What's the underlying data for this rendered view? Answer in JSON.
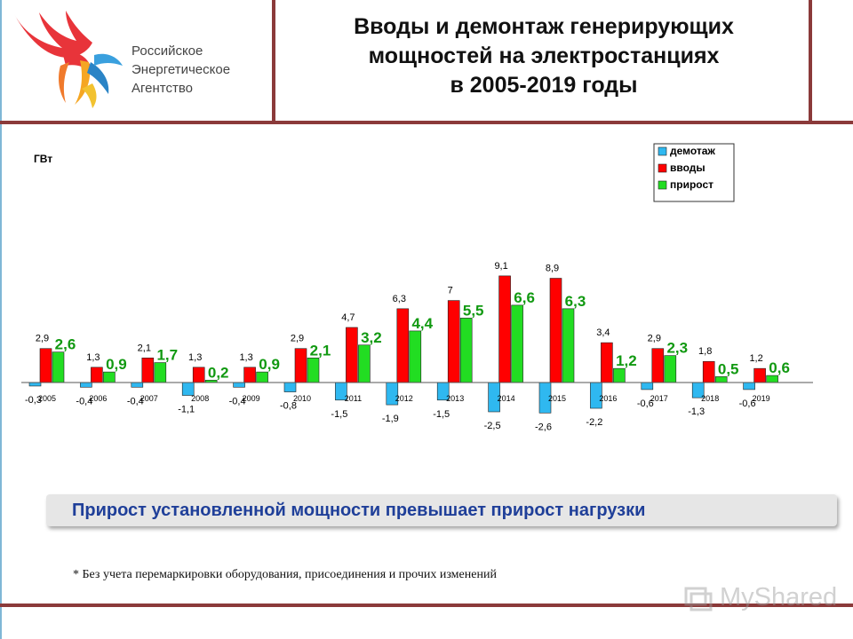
{
  "logo": {
    "line1": "Российское",
    "line2": "Энергетическое",
    "line3": "Агентство"
  },
  "title": {
    "line1": "Вводы и демонтаж генерирующих",
    "line2": "мощностей на электростанциях",
    "line3": "в 2005-2019 годы"
  },
  "banner": "Прирост установленной мощности превышает прирост нагрузки",
  "footnote": "* Без учета перемаркировки оборудования, присоединения и прочих изменений",
  "watermark": "MyShared",
  "colors": {
    "demontazh": "#2fb8f0",
    "vvody": "#ff0000",
    "prirost": "#22dd22",
    "prirost_label": "#119911",
    "frame": "#8b3a3a"
  },
  "chart_data": {
    "type": "bar",
    "ylabel": "ГВт",
    "categories": [
      "2005",
      "2006",
      "2007",
      "2008",
      "2009",
      "2010",
      "2011",
      "2012",
      "2013",
      "2014",
      "2015",
      "2016",
      "2017",
      "2018",
      "2019"
    ],
    "series": [
      {
        "name": "демотаж",
        "values": [
          -0.3,
          -0.4,
          -0.4,
          -1.1,
          -0.4,
          -0.8,
          -1.5,
          -1.9,
          -1.5,
          -2.5,
          -2.6,
          -2.2,
          -0.6,
          -1.3,
          -0.6
        ],
        "labels": [
          "-0,3",
          "-0,4",
          "-0,4",
          "-1,1",
          "-0,4",
          "-0,8",
          "-1,5",
          "-1,9",
          "-1,5",
          "-2,5",
          "-2,6",
          "-2,2",
          "-0,6",
          "-1,3",
          "-0,6"
        ]
      },
      {
        "name": "вводы",
        "values": [
          2.9,
          1.3,
          2.1,
          1.3,
          1.3,
          2.9,
          4.7,
          6.3,
          7.0,
          9.1,
          8.9,
          3.4,
          2.9,
          1.8,
          1.2
        ],
        "labels": [
          "2,9",
          "1,3",
          "2,1",
          "1,3",
          "1,3",
          "2,9",
          "4,7",
          "6,3",
          "7",
          "9,1",
          "8,9",
          "3,4",
          "2,9",
          "1,8",
          "1,2"
        ]
      },
      {
        "name": "прирост",
        "values": [
          2.6,
          0.9,
          1.7,
          0.2,
          0.9,
          2.1,
          3.2,
          4.4,
          5.5,
          6.6,
          6.3,
          1.2,
          2.3,
          0.5,
          0.6
        ],
        "labels": [
          "2,6",
          "0,9",
          "1,7",
          "0,2",
          "0,9",
          "2,1",
          "3,2",
          "4,4",
          "5,5",
          "6,6",
          "6,3",
          "1,2",
          "2,3",
          "0,5",
          "0,6"
        ]
      }
    ],
    "ylim": [
      -2.6,
      9.1
    ],
    "legend": "top-right",
    "grid": false
  }
}
